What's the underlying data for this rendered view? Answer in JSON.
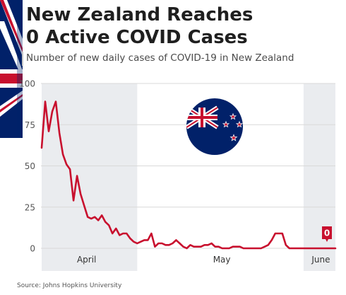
{
  "header": {
    "title_line1": "New Zealand Reaches",
    "title_line2": "0 Active COVID Cases",
    "subtitle": "Number of new daily cases of COVID-19 in New Zealand"
  },
  "source": "Source: Johns Hopkins University",
  "colors": {
    "line": "#c8102e",
    "gridline": "#d9d9d9",
    "highlight_band": "#eaecef",
    "flag_blue": "#012169",
    "flag_red": "#c8102e"
  },
  "icons": [
    "new-zealand-flag-icon"
  ],
  "chart_data": {
    "type": "line",
    "title": "New Zealand Reaches 0 Active COVID Cases",
    "subtitle": "Number of new daily cases of COVID-19 in New Zealand",
    "xlabel": "",
    "ylabel": "",
    "ylim": [
      0,
      100
    ],
    "yticks": [
      0,
      25,
      50,
      75,
      100
    ],
    "x_tick_labels": [
      "April",
      "May",
      "June"
    ],
    "grid": true,
    "legend": "none",
    "shaded_ranges": [
      {
        "from": "2020-03-18",
        "to": "2020-04-14"
      },
      {
        "from": "2020-05-31",
        "to": "2020-06-09"
      }
    ],
    "end_label": "0",
    "series": [
      {
        "x": [
          "2020-03-18",
          "2020-03-19",
          "2020-03-20",
          "2020-03-21",
          "2020-03-22",
          "2020-03-23",
          "2020-03-24",
          "2020-03-25",
          "2020-03-26",
          "2020-03-27",
          "2020-03-28",
          "2020-03-29",
          "2020-03-30",
          "2020-03-31",
          "2020-04-01",
          "2020-04-02",
          "2020-04-03",
          "2020-04-04",
          "2020-04-05",
          "2020-04-06",
          "2020-04-07",
          "2020-04-08",
          "2020-04-09",
          "2020-04-10",
          "2020-04-11",
          "2020-04-12",
          "2020-04-13",
          "2020-04-14",
          "2020-04-15",
          "2020-04-16",
          "2020-04-17",
          "2020-04-18",
          "2020-04-19",
          "2020-04-20",
          "2020-04-21",
          "2020-04-22",
          "2020-04-23",
          "2020-04-24",
          "2020-04-25",
          "2020-04-26",
          "2020-04-27",
          "2020-04-28",
          "2020-04-29",
          "2020-04-30",
          "2020-05-01",
          "2020-05-02",
          "2020-05-03",
          "2020-05-04",
          "2020-05-05",
          "2020-05-06",
          "2020-05-07",
          "2020-05-08",
          "2020-05-09",
          "2020-05-10",
          "2020-05-11",
          "2020-05-12",
          "2020-05-13",
          "2020-05-14",
          "2020-05-15",
          "2020-05-16",
          "2020-05-17",
          "2020-05-18",
          "2020-05-19",
          "2020-05-20",
          "2020-05-21",
          "2020-05-22",
          "2020-05-23",
          "2020-05-24",
          "2020-05-25",
          "2020-05-26",
          "2020-05-27",
          "2020-05-28",
          "2020-05-29",
          "2020-05-30",
          "2020-05-31",
          "2020-06-01",
          "2020-06-02",
          "2020-06-03",
          "2020-06-04",
          "2020-06-05",
          "2020-06-06",
          "2020-06-07",
          "2020-06-08",
          "2020-06-09"
        ],
        "values": [
          61,
          89,
          71,
          83,
          89,
          70,
          57,
          51,
          48,
          29,
          44,
          33,
          26,
          19,
          18,
          19,
          17,
          20,
          16,
          14,
          9,
          12,
          8,
          9,
          9,
          6,
          4,
          3,
          4,
          5,
          5,
          9,
          1,
          3,
          3,
          2,
          2,
          3,
          5,
          3,
          1,
          0,
          2,
          1,
          1,
          1,
          2,
          2,
          3,
          1,
          1,
          0,
          0,
          0,
          1,
          1,
          1,
          0,
          0,
          0,
          0,
          0,
          0,
          1,
          2,
          5,
          9,
          9,
          9,
          2,
          0,
          0,
          0,
          0,
          0,
          0,
          0,
          0,
          0,
          0,
          0,
          0,
          0,
          0
        ]
      }
    ]
  }
}
